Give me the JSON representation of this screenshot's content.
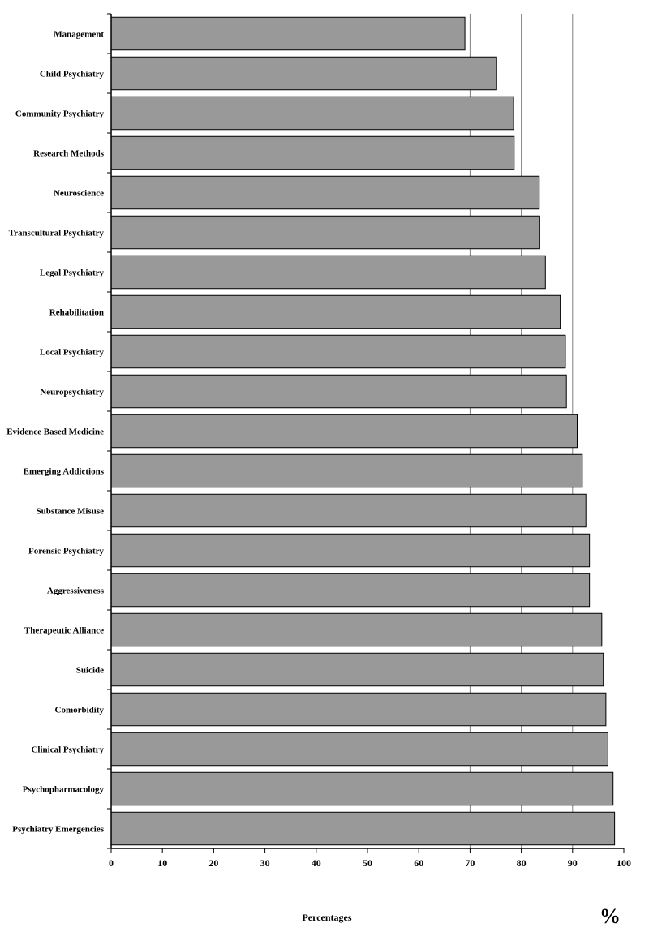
{
  "chart_data": {
    "type": "bar",
    "orientation": "horizontal",
    "categories": [
      "Management",
      "Child Psychiatry",
      "Community Psychiatry",
      "Research Methods",
      "Neuroscience",
      "Transcultural Psychiatry",
      "Legal Psychiatry",
      "Rehabilitation",
      "Local Psychiatry",
      "Neuropsychiatry",
      "Evidence Based Medicine",
      "Emerging Addictions",
      "Substance Misuse",
      "Forensic Psychiatry",
      "Aggressiveness",
      "Therapeutic Alliance",
      "Suicide",
      "Comorbidity",
      "Clinical Psychiatry",
      "Psychopharmacology",
      "Psychiatry Emergencies"
    ],
    "values": [
      69.0,
      75.2,
      78.5,
      78.6,
      83.5,
      83.6,
      84.7,
      87.6,
      88.6,
      88.8,
      90.9,
      91.9,
      92.6,
      93.3,
      93.3,
      95.7,
      96.0,
      96.5,
      96.9,
      97.9,
      98.2
    ],
    "xlim": [
      0,
      100
    ],
    "xticks": [
      0,
      10,
      20,
      30,
      40,
      50,
      60,
      70,
      80,
      90,
      100
    ],
    "gridlines_at": [
      70,
      80,
      90
    ],
    "xlabel": "Percentages",
    "unit_label": "%",
    "bar_color": "#999999",
    "bar_edge_color": "#000000"
  }
}
